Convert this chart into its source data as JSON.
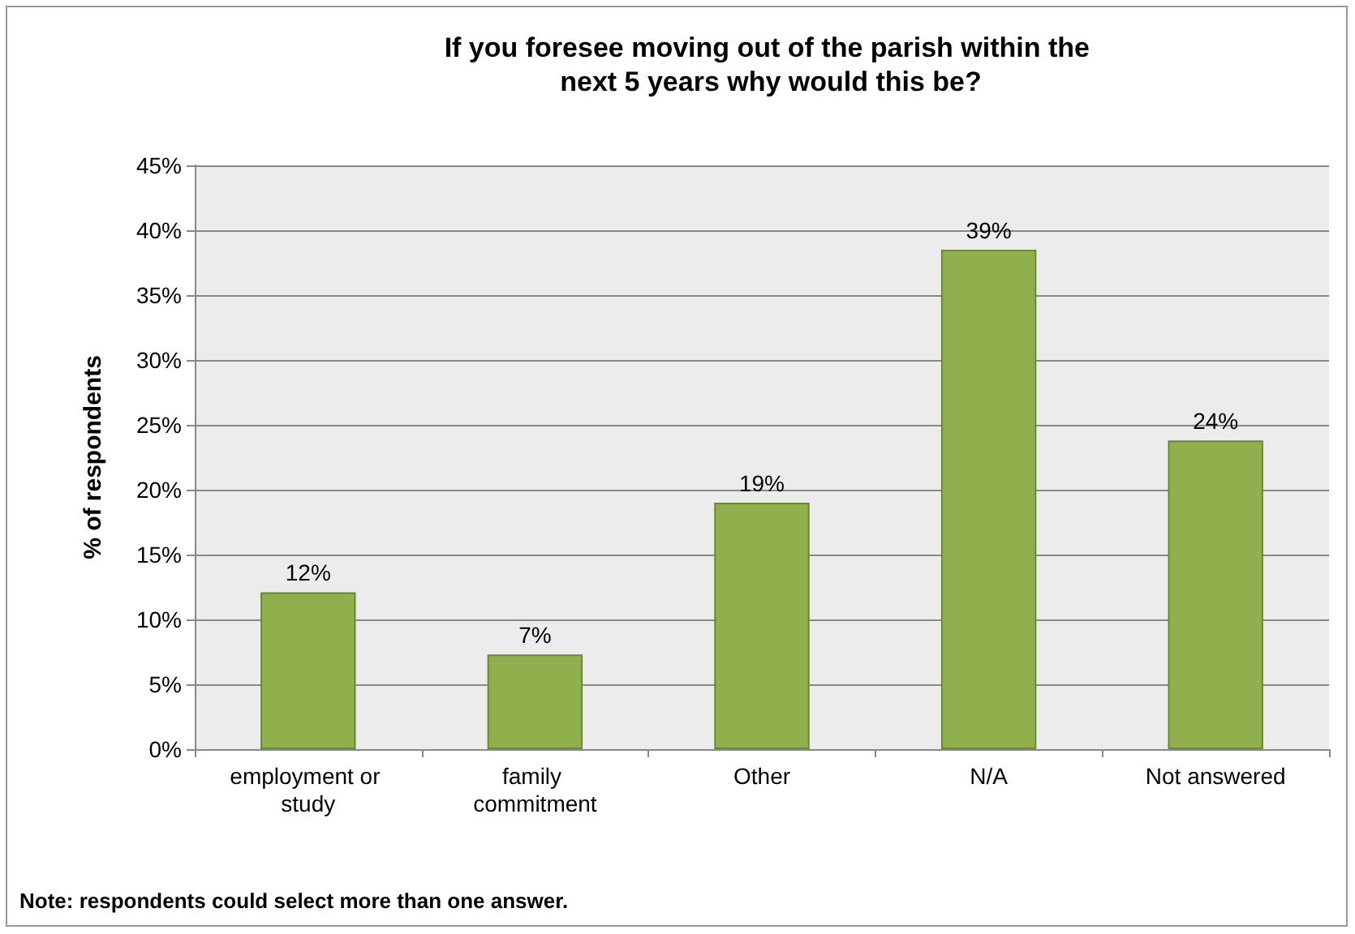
{
  "chart_data": {
    "type": "bar",
    "title": "If you foresee moving out of the parish within the next 5 years why would this be?",
    "ylabel": "% of respondents",
    "categories": [
      "employment or study",
      "family commitment",
      "Other",
      "N/A",
      "Not answered"
    ],
    "values": [
      12.1,
      7.3,
      19,
      38.5,
      23.8
    ],
    "value_labels": [
      "12%",
      "7%",
      "19%",
      "39%",
      "24%"
    ],
    "color": "#8fb04c",
    "ylim": [
      0,
      45
    ],
    "yticks": [
      {
        "value": 0,
        "label": "0%"
      },
      {
        "value": 5,
        "label": "5%"
      },
      {
        "value": 10,
        "label": "10%"
      },
      {
        "value": 15,
        "label": "15%"
      },
      {
        "value": 20,
        "label": "20%"
      },
      {
        "value": 25,
        "label": "25%"
      },
      {
        "value": 30,
        "label": "30%"
      },
      {
        "value": 35,
        "label": "35%"
      },
      {
        "value": 40,
        "label": "40%"
      },
      {
        "value": 45,
        "label": "45%"
      }
    ],
    "grid": "y",
    "annotations": [
      "Note: respondents could select more than one answer."
    ]
  }
}
